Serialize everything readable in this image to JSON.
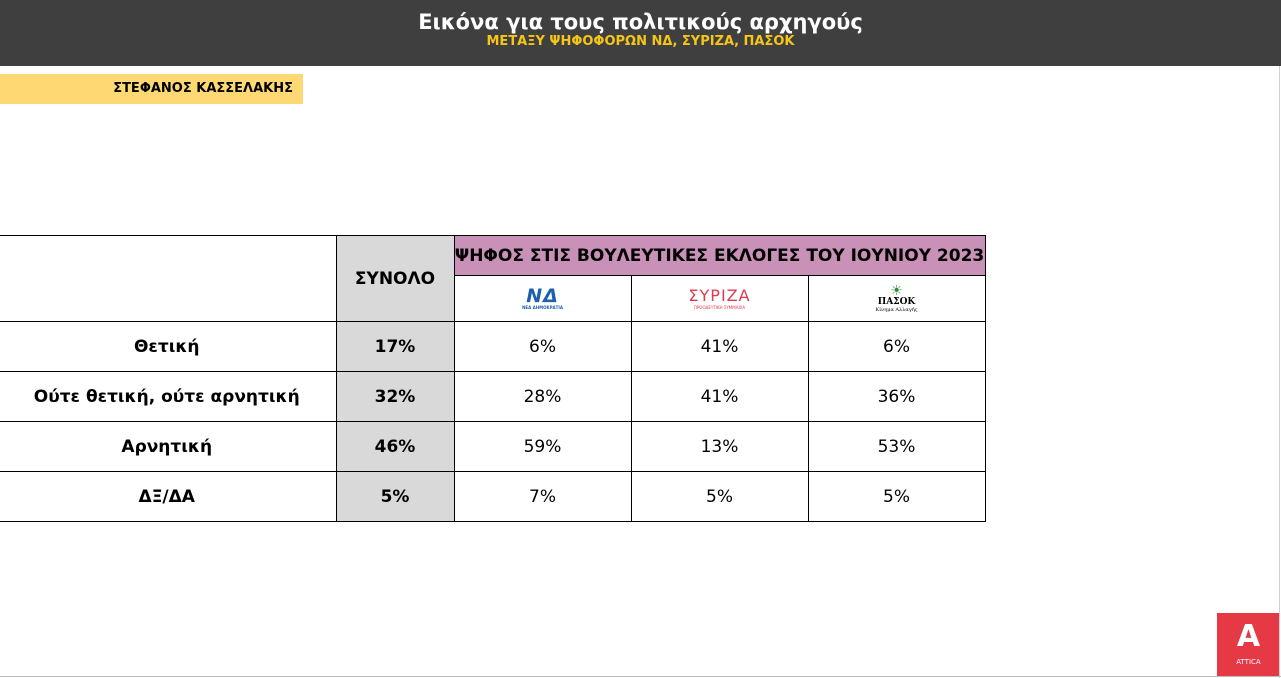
{
  "header": {
    "title": "Εικόνα για τους πολιτικούς αρχηγούς",
    "subtitle": "ΜΕΤΑΞΥ ΨΗΦΟΦΟΡΩΝ ΝΔ, ΣΥΡΙΖΑ, ΠΑΣΟΚ"
  },
  "person": "ΣΤΕΦΑΝΟΣ ΚΑΣΣΕΛΑΚΗΣ",
  "table": {
    "total_header": "ΣΥΝΟΛΟ",
    "group_header": "ΨΗΦΟΣ ΣΤΙΣ ΒΟΥΛΕΥΤΙΚΕΣ ΕΚΛΟΓΕΣ ΤΟΥ ΙΟΥΝΙΟΥ 2023",
    "parties": [
      {
        "logo_text": "ΝΔ",
        "logo_sub": "ΝΕΑ ΔΗΜΟΚΡΑΤΙΑ",
        "color": "#1f5fb0",
        "icon": "nd-logo"
      },
      {
        "logo_text": "ΣΥΡΙΖΑ",
        "logo_sub": "ΠΡΟΟΔΕΥΤΙΚΗ ΣΥΜΜΑΧΙΑ",
        "color": "#e2384d",
        "icon": "syriza-logo"
      },
      {
        "logo_text": "ΠΑΣΟΚ",
        "logo_sub": "Κίνημα Αλλαγής",
        "color": "#2e8b3c",
        "icon": "pasok-logo"
      }
    ],
    "rows": [
      {
        "label": "Θετική",
        "total": "17%",
        "values": [
          "6%",
          "41%",
          "6%"
        ]
      },
      {
        "label": "Ούτε θετική, ούτε αρνητική",
        "total": "32%",
        "values": [
          "28%",
          "41%",
          "36%"
        ]
      },
      {
        "label": "Αρνητική",
        "total": "46%",
        "values": [
          "59%",
          "13%",
          "53%"
        ]
      },
      {
        "label": "ΔΞ/ΔΑ",
        "total": "5%",
        "values": [
          "7%",
          "5%",
          "5%"
        ]
      }
    ]
  },
  "brand": {
    "name": "ATTICA",
    "icon": "attica-logo",
    "color": "#e63946"
  }
}
